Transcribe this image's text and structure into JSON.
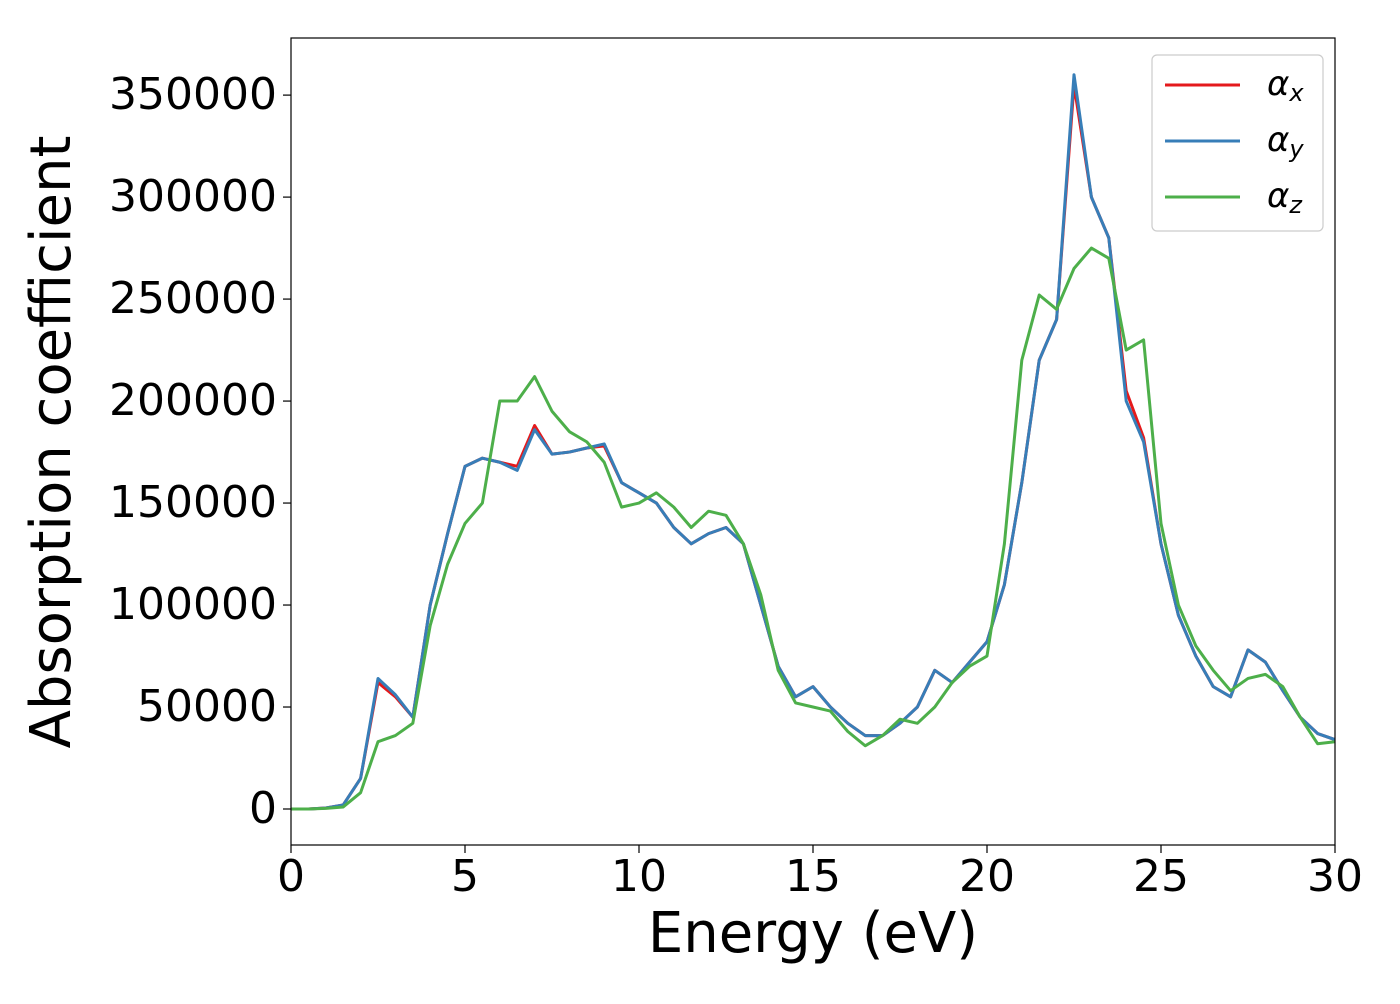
{
  "chart_data": {
    "type": "line",
    "xlabel": "Energy (eV)",
    "ylabel": "Absorption coefficient",
    "x": [
      0,
      0.5,
      1,
      1.5,
      2,
      2.5,
      3,
      3.5,
      4,
      4.5,
      5,
      5.5,
      6,
      6.5,
      7,
      7.5,
      8,
      8.5,
      9,
      9.5,
      10,
      10.5,
      11,
      11.5,
      12,
      12.5,
      13,
      13.5,
      14,
      14.5,
      15,
      15.5,
      16,
      16.5,
      17,
      17.5,
      18,
      18.5,
      19,
      19.5,
      20,
      20.5,
      21,
      21.5,
      22,
      22.5,
      23,
      23.5,
      24,
      24.5,
      25,
      25.5,
      26,
      26.5,
      27,
      27.5,
      28,
      28.5,
      29,
      29.5,
      30
    ],
    "series": [
      {
        "name": "αx",
        "color": "#e41a1c",
        "values": [
          0,
          0,
          500,
          2000,
          15000,
          62000,
          55000,
          45000,
          100000,
          135000,
          168000,
          172000,
          170000,
          168000,
          188000,
          174000,
          175000,
          177000,
          178000,
          160000,
          155000,
          150000,
          138000,
          130000,
          135000,
          138000,
          130000,
          100000,
          70000,
          55000,
          60000,
          50000,
          42000,
          36000,
          36000,
          42000,
          50000,
          68000,
          62000,
          72000,
          82000,
          110000,
          160000,
          220000,
          240000,
          355000,
          300000,
          280000,
          205000,
          182000,
          130000,
          95000,
          75000,
          60000,
          55000,
          78000,
          72000,
          58000,
          45000,
          37000,
          34000
        ]
      },
      {
        "name": "αy",
        "color": "#377eb8",
        "values": [
          0,
          0,
          500,
          2000,
          15000,
          64000,
          56000,
          45000,
          100000,
          135000,
          168000,
          172000,
          170000,
          166000,
          186000,
          174000,
          175000,
          177000,
          179000,
          160000,
          155000,
          150000,
          138000,
          130000,
          135000,
          138000,
          130000,
          100000,
          70000,
          55000,
          60000,
          50000,
          42000,
          36000,
          36000,
          42000,
          50000,
          68000,
          62000,
          72000,
          82000,
          110000,
          160000,
          220000,
          240000,
          360000,
          300000,
          280000,
          200000,
          180000,
          130000,
          95000,
          75000,
          60000,
          55000,
          78000,
          72000,
          58000,
          45000,
          37000,
          34000
        ]
      },
      {
        "name": "αz",
        "color": "#4daf4a",
        "values": [
          0,
          0,
          300,
          1000,
          8000,
          33000,
          36000,
          42000,
          90000,
          120000,
          140000,
          150000,
          200000,
          200000,
          212000,
          195000,
          185000,
          180000,
          170000,
          148000,
          150000,
          155000,
          148000,
          138000,
          146000,
          144000,
          130000,
          105000,
          68000,
          52000,
          50000,
          48000,
          38000,
          31000,
          36000,
          44000,
          42000,
          50000,
          62000,
          70000,
          75000,
          130000,
          220000,
          252000,
          245000,
          265000,
          275000,
          270000,
          225000,
          230000,
          140000,
          100000,
          80000,
          68000,
          58000,
          64000,
          66000,
          60000,
          45000,
          32000,
          33000
        ]
      }
    ],
    "xlim": [
      0,
      30
    ],
    "ylim": [
      -17650,
      378000
    ],
    "xticks": [
      0,
      5,
      10,
      15,
      20,
      25,
      30
    ],
    "yticks": [
      0,
      50000,
      100000,
      150000,
      200000,
      250000,
      300000,
      350000
    ],
    "legend": "upper right"
  }
}
